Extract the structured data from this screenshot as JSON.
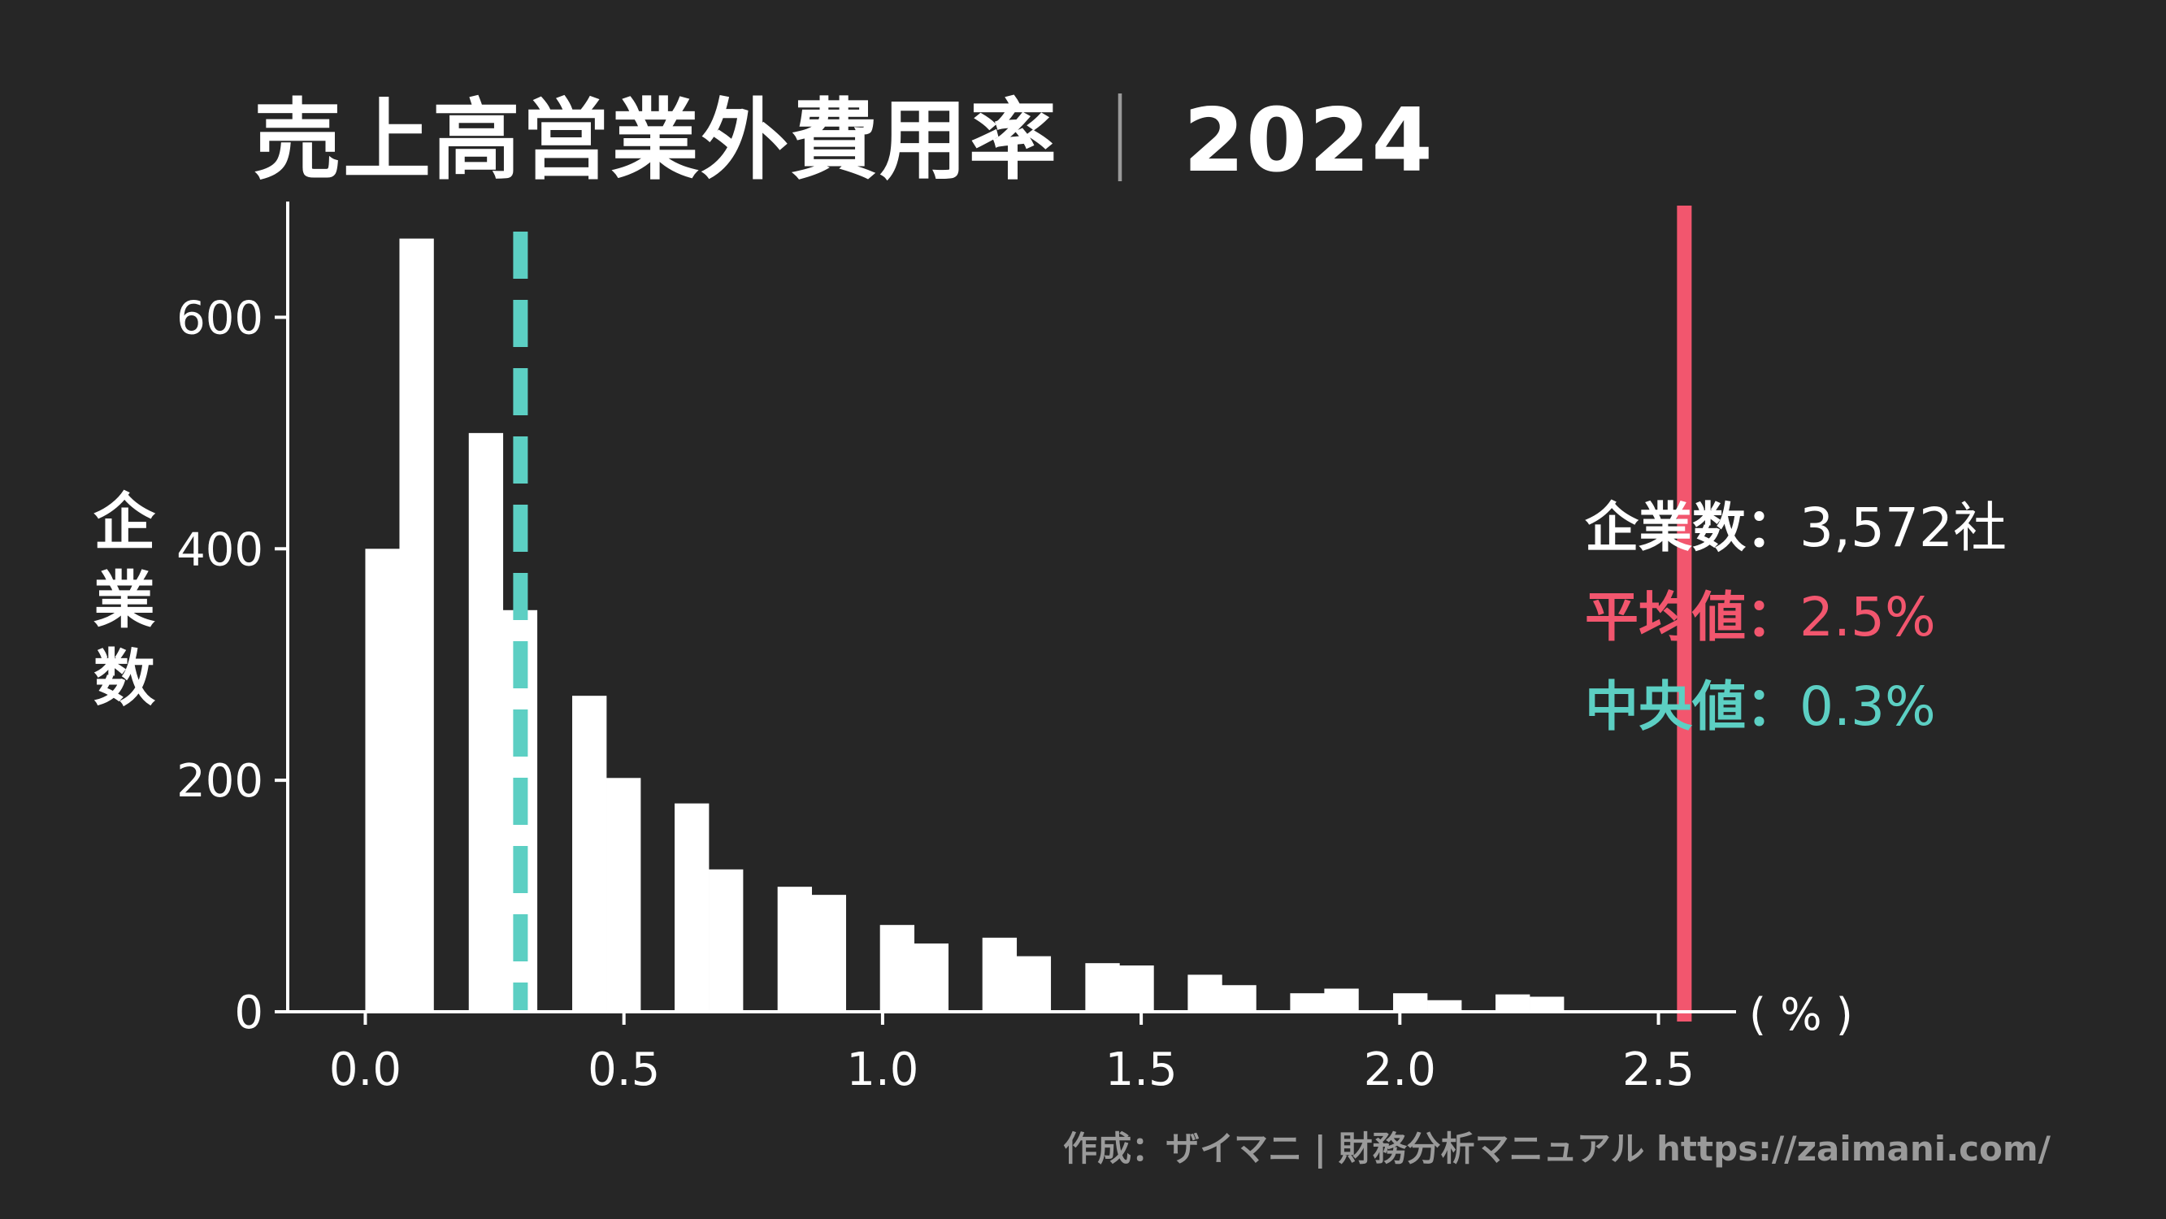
{
  "title": {
    "main": "売上高営業外費用率",
    "separator": "｜",
    "year": "2024"
  },
  "y_axis_label": [
    "企",
    "業",
    "数"
  ],
  "x_unit": "( % )",
  "stats": {
    "count_label": "企業数",
    "count_sep": "：",
    "count_value": "3,572社",
    "mean_label": "平均値",
    "mean_sep": "：",
    "mean_value": "2.5%",
    "median_label": "中央値",
    "median_sep": "：",
    "median_value": "0.3%"
  },
  "credit": "作成：ザイマニ | 財務分析マニュアル https://zaimani.com/",
  "colors": {
    "background": "#262626",
    "bars": "#ffffff",
    "mean": "#f2566e",
    "median": "#5ccfc3",
    "muted": "#9a9a9a"
  },
  "chart_data": {
    "type": "bar",
    "xlim": [
      -0.15,
      2.65
    ],
    "ylim": [
      0,
      700
    ],
    "xticks": [
      0.0,
      0.5,
      1.0,
      1.5,
      2.0,
      2.5
    ],
    "xtick_labels": [
      "0.0",
      "0.5",
      "1.0",
      "1.5",
      "2.0",
      "2.5"
    ],
    "yticks": [
      0,
      200,
      400,
      600
    ],
    "ytick_labels": [
      "0",
      "200",
      "400",
      "600"
    ],
    "bin_width": 0.0665,
    "bins": [
      {
        "x0": 0.0,
        "value": 400
      },
      {
        "x0": 0.066,
        "value": 668
      },
      {
        "x0": 0.2,
        "value": 500
      },
      {
        "x0": 0.266,
        "value": 347
      },
      {
        "x0": 0.4,
        "value": 273
      },
      {
        "x0": 0.466,
        "value": 202
      },
      {
        "x0": 0.598,
        "value": 180
      },
      {
        "x0": 0.664,
        "value": 123
      },
      {
        "x0": 0.797,
        "value": 108
      },
      {
        "x0": 0.863,
        "value": 101
      },
      {
        "x0": 0.995,
        "value": 75
      },
      {
        "x0": 1.061,
        "value": 59
      },
      {
        "x0": 1.193,
        "value": 64
      },
      {
        "x0": 1.259,
        "value": 48
      },
      {
        "x0": 1.392,
        "value": 42
      },
      {
        "x0": 1.458,
        "value": 40
      },
      {
        "x0": 1.59,
        "value": 32
      },
      {
        "x0": 1.656,
        "value": 23
      },
      {
        "x0": 1.788,
        "value": 16
      },
      {
        "x0": 1.854,
        "value": 20
      },
      {
        "x0": 1.987,
        "value": 16
      },
      {
        "x0": 2.053,
        "value": 10
      },
      {
        "x0": 2.185,
        "value": 15
      },
      {
        "x0": 2.251,
        "value": 13
      }
    ],
    "mean": 2.55,
    "median": 0.3,
    "grid": false
  }
}
